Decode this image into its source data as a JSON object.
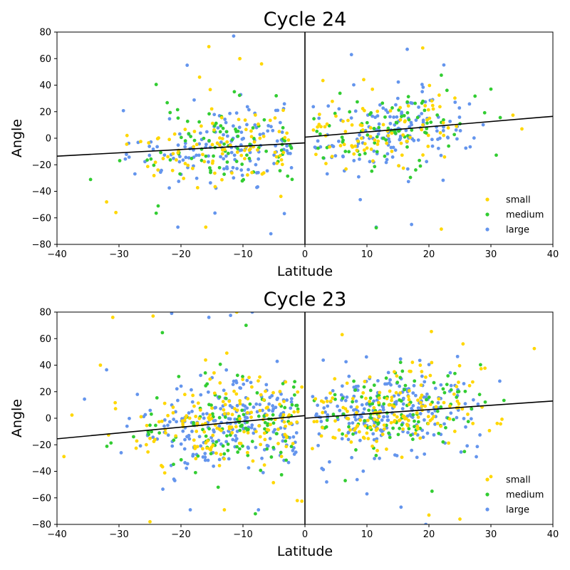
{
  "chart_data": [
    {
      "type": "scatter",
      "title": "Cycle 24",
      "xlabel": "Latitude",
      "ylabel": "Angle",
      "xlim": [
        -40,
        40
      ],
      "ylim": [
        -80,
        80
      ],
      "xticks": [
        -40,
        -30,
        -20,
        -10,
        0,
        10,
        20,
        30,
        40
      ],
      "yticks": [
        -80,
        -60,
        -40,
        -20,
        0,
        20,
        40,
        60,
        80
      ],
      "legend": {
        "location": "lower-right",
        "entries": [
          "small",
          "medium",
          "large"
        ]
      },
      "vertical_line_at_x": 0,
      "fit_lines": [
        {
          "hemisphere": "south",
          "x": [
            -40,
            0
          ],
          "y": [
            -13.5,
            -3.5
          ]
        },
        {
          "hemisphere": "north",
          "x": [
            0,
            40
          ],
          "y": [
            0.8,
            16.5
          ]
        }
      ],
      "series": [
        {
          "name": "small",
          "color": "#ffd700",
          "count": 180
        },
        {
          "name": "medium",
          "color": "#32cd32",
          "count": 170
        },
        {
          "name": "large",
          "color": "#6495ed",
          "count": 300
        }
      ],
      "point_distribution": {
        "south": {
          "lat_range": [
            -37,
            -2
          ],
          "angle_mean_at_lat": "fit",
          "angle_spread": 15
        },
        "north": {
          "lat_range": [
            1,
            40
          ],
          "angle_mean_at_lat": "fit",
          "angle_spread": 15
        }
      },
      "outliers": [
        {
          "series": "large",
          "points": [
            [
              -11.5,
              77
            ],
            [
              -19,
              55
            ],
            [
              -20.5,
              -67
            ],
            [
              -5.5,
              -72
            ],
            [
              17.2,
              -65
            ],
            [
              11.5,
              -67
            ],
            [
              7.5,
              63
            ],
            [
              16.5,
              67
            ]
          ]
        },
        {
          "series": "small",
          "points": [
            [
              -15.5,
              69
            ],
            [
              -10.5,
              60
            ],
            [
              -7,
              56
            ],
            [
              -17,
              46
            ],
            [
              -32,
              -48
            ],
            [
              -30.5,
              -56
            ],
            [
              -16,
              -67
            ],
            [
              19,
              68
            ],
            [
              22,
              -68.5
            ],
            [
              35,
              7
            ]
          ]
        },
        {
          "series": "medium",
          "points": [
            [
              -24,
              40.5
            ],
            [
              -24,
              -56.5
            ],
            [
              22,
              47.5
            ],
            [
              30,
              37
            ],
            [
              11.5,
              -67.5
            ]
          ]
        }
      ]
    },
    {
      "type": "scatter",
      "title": "Cycle 23",
      "xlabel": "Latitude",
      "ylabel": "Angle",
      "xlim": [
        -40,
        40
      ],
      "ylim": [
        -80,
        80
      ],
      "xticks": [
        -40,
        -30,
        -20,
        -10,
        0,
        10,
        20,
        30,
        40
      ],
      "yticks": [
        -80,
        -60,
        -40,
        -20,
        0,
        20,
        40,
        60,
        80
      ],
      "legend": {
        "location": "lower-right",
        "entries": [
          "small",
          "medium",
          "large"
        ]
      },
      "vertical_line_at_x": 0,
      "fit_lines": [
        {
          "hemisphere": "south",
          "x": [
            -40,
            0
          ],
          "y": [
            -15.5,
            2
          ]
        },
        {
          "hemisphere": "north",
          "x": [
            0,
            40
          ],
          "y": [
            0,
            13
          ]
        }
      ],
      "series": [
        {
          "name": "small",
          "color": "#ffd700",
          "count": 320
        },
        {
          "name": "medium",
          "color": "#32cd32",
          "count": 230
        },
        {
          "name": "large",
          "color": "#6495ed",
          "count": 460
        }
      ],
      "point_distribution": {
        "south": {
          "lat_range": [
            -39,
            -1
          ],
          "angle_mean_at_lat": "fit",
          "angle_spread": 18
        },
        "north": {
          "lat_range": [
            1,
            39
          ],
          "angle_mean_at_lat": "fit",
          "angle_spread": 16
        }
      },
      "outliers": [
        {
          "series": "small",
          "points": [
            [
              -24.5,
              77
            ],
            [
              -31,
              76
            ],
            [
              -11,
              80
            ],
            [
              -33,
              40
            ],
            [
              -25,
              -78
            ],
            [
              -13,
              -69
            ],
            [
              6,
              63
            ],
            [
              25.5,
              56
            ],
            [
              37,
              52.5
            ],
            [
              -0.5,
              -62.5
            ],
            [
              -0.5,
              23.5
            ],
            [
              20,
              -73
            ],
            [
              25,
              -76
            ],
            [
              30,
              -44
            ]
          ]
        },
        {
          "series": "medium",
          "points": [
            [
              -23,
              64.5
            ],
            [
              -9.5,
              70
            ],
            [
              -8,
              -72
            ],
            [
              -14,
              -52
            ],
            [
              6.5,
              -47
            ],
            [
              20.5,
              -55
            ]
          ]
        },
        {
          "series": "large",
          "points": [
            [
              -21.5,
              79
            ],
            [
              -15.5,
              76
            ],
            [
              -12,
              77.5
            ],
            [
              -8.5,
              80
            ],
            [
              -32,
              36.5
            ],
            [
              -18.5,
              -69
            ],
            [
              -7.5,
              -69
            ],
            [
              19.5,
              -80
            ],
            [
              10,
              -57
            ],
            [
              15.5,
              -67
            ],
            [
              3.5,
              -48
            ]
          ]
        }
      ]
    }
  ]
}
